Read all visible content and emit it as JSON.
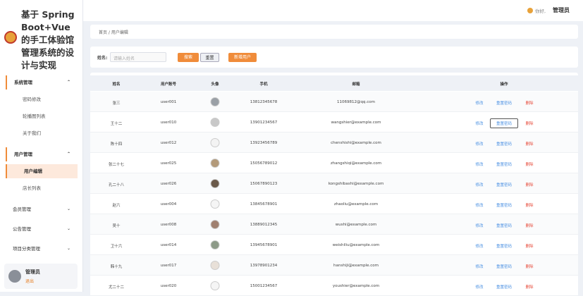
{
  "sidebar": {
    "title": "基于 Spring Boot+Vue的手工体验馆管理系统的设计与实现",
    "menus": [
      {
        "label": "系统管理",
        "items": [
          "密码修改",
          "轮播图列表",
          "关于我们"
        ]
      },
      {
        "label": "用户管理",
        "items": [
          "用户编辑",
          "店长列表"
        ]
      },
      {
        "label": "会员管理"
      },
      {
        "label": "公告管理"
      },
      {
        "label": "项目分类管理"
      }
    ],
    "user": {
      "name": "管理员",
      "logout": "退出"
    }
  },
  "header": {
    "greeting": "你好,",
    "user": "管理员"
  },
  "breadcrumb": "首页 / 用户编辑",
  "search": {
    "label": "姓名:",
    "placeholder": "请输入姓名",
    "buttons": [
      "搜索",
      "重置",
      "新增用户"
    ]
  },
  "table": {
    "headers": [
      "姓名",
      "用户账号",
      "头像",
      "手机",
      "邮箱",
      "操作"
    ],
    "actions": [
      "修改",
      "重置密码",
      "删除"
    ],
    "rows": [
      [
        "张三",
        "user001",
        "13812345678",
        "11069812@qq.com"
      ],
      [
        "王十二",
        "user010",
        "13901234567",
        "wangshier@example.com"
      ],
      [
        "陈十四",
        "user012",
        "13923456789",
        "chenshishi@example.com"
      ],
      [
        "张二十七",
        "user025",
        "15056789012",
        "zhangshiqi@example.com"
      ],
      [
        "孔二十八",
        "user026",
        "15067890123",
        "kongshibashi@example.com"
      ],
      [
        "赵六",
        "user004",
        "13845678901",
        "zhaoliu@example.com"
      ],
      [
        "吴十",
        "user008",
        "13889012345",
        "wushi@example.com"
      ],
      [
        "卫十六",
        "user014",
        "13945678901",
        "weishiliu@example.com"
      ],
      [
        "韩十九",
        "user017",
        "13978901234",
        "hanshiji@example.com"
      ],
      [
        "尤二十二",
        "user020",
        "15001234567",
        "youshier@example.com"
      ]
    ]
  }
}
